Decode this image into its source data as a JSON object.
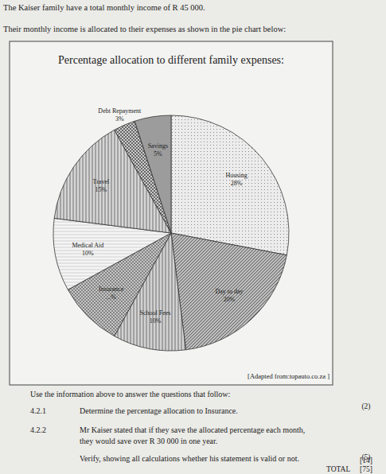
{
  "page": {
    "intro": [
      "The Kaiser family have a total monthly income of R 45 000.",
      "Their monthly income is allocated to their expenses as shown in the pie chart below:"
    ],
    "source": "[Adapted from:topauto.co.za ]",
    "instruction": "Use the information above to answer the questions that follow:",
    "questions": [
      {
        "number": "4.2.1",
        "lines": [
          "Determine the percentage allocation to Insurance."
        ],
        "marks": "(2)"
      },
      {
        "number": "4.2.2",
        "lines": [
          "Mr Kaiser stated that if they save the allocated percentage each month,",
          "they would save over R 30 000 in one year.",
          "Verify, showing all calculations whether his statement is valid or not."
        ],
        "marks": "(5)"
      }
    ],
    "section_total": "[14]",
    "total_label": "TOTAL",
    "total_marks": "[75]"
  },
  "chart_data": {
    "type": "pie",
    "title": "Percentage allocation to different family expenses:",
    "categories": [
      "Housing",
      "Day to day",
      "School Fees",
      "Insurance",
      "Medical Aid",
      "Travel",
      "Debt Repayment",
      "Savings"
    ],
    "values": [
      28,
      20,
      10,
      9,
      10,
      15,
      3,
      5
    ],
    "value_labels": [
      "28%",
      "20%",
      "10%",
      "...%",
      "10%",
      "15%",
      "3%",
      "5%"
    ],
    "colors": [
      "#ececec",
      "#bcbcbc",
      "#d2d2d2",
      "#c6c6c6",
      "#f4f4f4",
      "#d6d6d6",
      "#cccccc",
      "#c2c2c2"
    ],
    "data_labels": true
  }
}
